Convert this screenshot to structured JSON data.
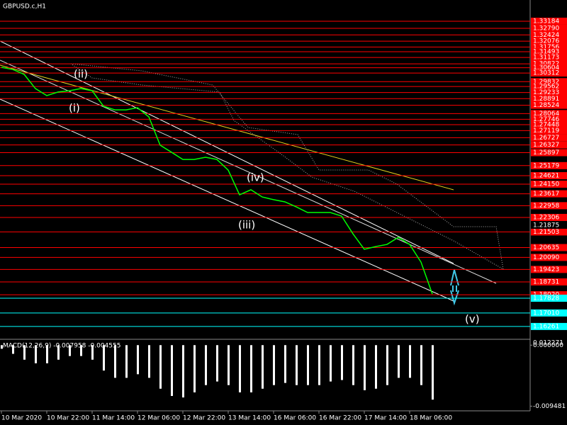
{
  "chart_data": [
    {
      "type": "line",
      "title": "GBPUSD.c,H1",
      "color": "#00ff00",
      "categories": [
        "10 Mar 2020",
        null,
        null,
        null,
        "10 Mar 22:00",
        null,
        null,
        null,
        "11 Mar 14:00",
        null,
        null,
        null,
        "12 Mar 06:00",
        null,
        null,
        null,
        "12 Mar 22:00",
        null,
        null,
        null,
        "13 Mar 14:00",
        null,
        null,
        null,
        "16 Mar 06:00",
        null,
        null,
        null,
        "16 Mar 22:00",
        null,
        null,
        null,
        "17 Mar 14:00",
        null,
        null,
        null,
        "18 Mar 06:00",
        null,
        null
      ],
      "values": [
        1.3063,
        1.3051,
        1.3024,
        1.2945,
        1.2906,
        1.2926,
        1.2933,
        1.2945,
        1.2933,
        1.2847,
        1.2827,
        1.2827,
        1.2839,
        1.2788,
        1.2631,
        1.2592,
        1.2552,
        1.2552,
        1.2564,
        1.2552,
        1.2493,
        1.2356,
        1.2384,
        1.2344,
        1.2329,
        1.2317,
        1.2289,
        1.2258,
        1.2258,
        1.2258,
        1.2238,
        1.214,
        1.2054,
        1.2069,
        1.2081,
        1.212,
        1.2081,
        1.1983,
        1.1806
      ],
      "ylim": [
        1.1559,
        1.3436
      ],
      "current_price": 1.21875,
      "levels": [
        {
          "value": 1.33184,
          "label": "1.33184",
          "color": "#ff0000"
        },
        {
          "value": 1.3279,
          "label": "1.32790",
          "color": "#ff0000"
        },
        {
          "value": 1.32424,
          "label": "1.32424",
          "color": "#ff0000"
        },
        {
          "value": 1.32076,
          "label": "1.32076",
          "color": "#ff0000"
        },
        {
          "value": 1.31756,
          "label": "1.31756",
          "color": "#ff0000"
        },
        {
          "value": 1.31493,
          "label": "1.31493",
          "color": "#ff0000"
        },
        {
          "value": 1.31173,
          "label": "1.31173",
          "color": "#ff0000"
        },
        {
          "value": 1.30822,
          "label": "1.30822",
          "color": "#ff0000"
        },
        {
          "value": 1.30604,
          "label": "1.30604",
          "color": "#ff0000"
        },
        {
          "value": 1.30312,
          "label": "1.30312",
          "color": "#ff0000"
        },
        {
          "value": 1.29832,
          "label": "1.29832",
          "color": "#ff0000"
        },
        {
          "value": 1.29562,
          "label": "1.29562",
          "color": "#ff0000"
        },
        {
          "value": 1.29233,
          "label": "1.29233",
          "color": "#ff0000"
        },
        {
          "value": 1.28891,
          "label": "1.28891",
          "color": "#ff0000"
        },
        {
          "value": 1.28524,
          "label": "1.28524",
          "color": "#ff0000"
        },
        {
          "value": 1.28064,
          "label": "1.28064",
          "color": "#ff0000"
        },
        {
          "value": 1.27746,
          "label": "1.27746",
          "color": "#ff0000"
        },
        {
          "value": 1.27448,
          "label": "1.27448",
          "color": "#ff0000"
        },
        {
          "value": 1.27119,
          "label": "1.27119",
          "color": "#ff0000"
        },
        {
          "value": 1.26727,
          "label": "1.26727",
          "color": "#ff0000"
        },
        {
          "value": 1.26327,
          "label": "1.26327",
          "color": "#ff0000"
        },
        {
          "value": 1.25897,
          "label": "1.25897",
          "color": "#ff0000"
        },
        {
          "value": 1.25179,
          "label": "1.25179",
          "color": "#ff0000"
        },
        {
          "value": 1.24621,
          "label": "1.24621",
          "color": "#ff0000"
        },
        {
          "value": 1.2415,
          "label": "1.24150",
          "color": "#ff0000"
        },
        {
          "value": 1.23617,
          "label": "1.23617",
          "color": "#ff0000"
        },
        {
          "value": 1.22958,
          "label": "1.22958",
          "color": "#ff0000"
        },
        {
          "value": 1.22306,
          "label": "1.22306",
          "color": "#ff0000"
        },
        {
          "value": 1.21503,
          "label": "1.21503",
          "color": "#ff0000"
        },
        {
          "value": 1.20635,
          "label": "1.20635",
          "color": "#ff0000"
        },
        {
          "value": 1.2009,
          "label": "1.20090",
          "color": "#ff0000"
        },
        {
          "value": 1.19423,
          "label": "1.19423",
          "color": "#ff0000"
        },
        {
          "value": 1.18731,
          "label": "1.18731",
          "color": "#ff0000"
        },
        {
          "value": 1.1802,
          "label": "1.18020",
          "color": "#ff0000"
        },
        {
          "value": 1.17828,
          "label": "1.17828",
          "color": "#00ffff"
        },
        {
          "value": 1.1701,
          "label": "1.17010",
          "color": "#00ffff"
        },
        {
          "value": 1.16261,
          "label": "1.16261",
          "color": "#00ffff"
        }
      ],
      "annotations": [
        "(ii)",
        "(i)",
        "(iv)",
        "(iii)",
        "(v)"
      ]
    },
    {
      "type": "bar",
      "title": "MACD(12,26,9) -0.007958 -0.004555",
      "color": "#ffffff",
      "values": [
        -0.00056,
        -0.00135,
        -0.00226,
        -0.00282,
        -0.00282,
        -0.00226,
        -0.00169,
        -0.00169,
        -0.00226,
        -0.00395,
        -0.00508,
        -0.00508,
        -0.00452,
        -0.00508,
        -0.00677,
        -0.0079,
        -0.00813,
        -0.00734,
        -0.00621,
        -0.00565,
        -0.00621,
        -0.00734,
        -0.00734,
        -0.00677,
        -0.00621,
        -0.00587,
        -0.00621,
        -0.00621,
        -0.00621,
        -0.00565,
        -0.00542,
        -0.00621,
        -0.007,
        -0.00677,
        -0.00621,
        -0.00508,
        -0.00508,
        -0.00621,
        -0.00847
      ],
      "ylim": [
        -0.0101,
        0.0008
      ],
      "ymax_label": "0.012271",
      "yticks": [
        {
          "value": 0,
          "label": "0.000000"
        },
        {
          "value": -0.009481,
          "label": "-0.009481"
        }
      ]
    }
  ]
}
